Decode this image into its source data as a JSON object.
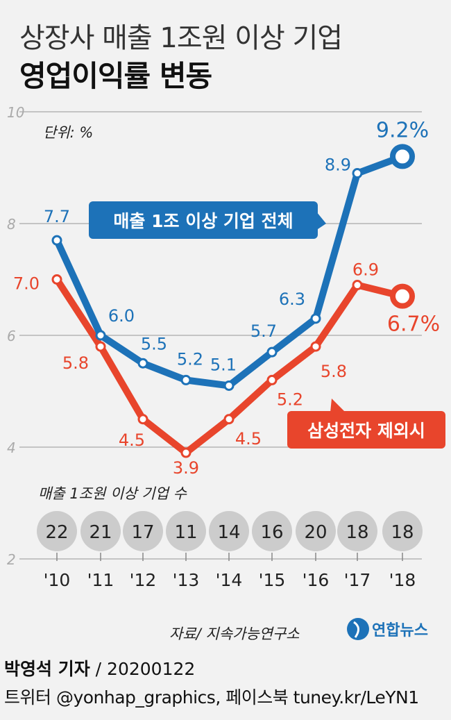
{
  "header": {
    "title_line1": "상장사 매출 1조원 이상 기업",
    "title_line2": "영업이익률 변동"
  },
  "chart_data": {
    "type": "line",
    "unit_label": "단위: %",
    "categories": [
      "'10",
      "'11",
      "'12",
      "'13",
      "'14",
      "'15",
      "'16",
      "'17",
      "'18"
    ],
    "ylim": [
      2,
      10
    ],
    "y_ticks": [
      "2",
      "4",
      "6",
      "8",
      "10"
    ],
    "grid": true,
    "series": [
      {
        "name": "매출 1조 이상 기업 전체",
        "color": "#1d72b8",
        "values": [
          7.7,
          6.0,
          5.5,
          5.2,
          5.1,
          5.7,
          6.3,
          8.9,
          9.2
        ],
        "labels": [
          "7.7",
          "6.0",
          "5.5",
          "5.2",
          "5.1",
          "5.7",
          "6.3",
          "8.9",
          "9.2%"
        ]
      },
      {
        "name": "삼성전자 제외시",
        "color": "#e8452c",
        "values": [
          7.0,
          5.8,
          4.5,
          3.9,
          4.5,
          5.2,
          5.8,
          6.9,
          6.7
        ],
        "labels": [
          "7.0",
          "5.8",
          "4.5",
          "3.9",
          "4.5",
          "5.2",
          "5.8",
          "6.9",
          "6.7%"
        ]
      }
    ],
    "company_count": {
      "label": "매출 1조원 이상 기업 수",
      "values": [
        "22",
        "21",
        "17",
        "11",
        "14",
        "16",
        "20",
        "18",
        "18"
      ]
    }
  },
  "footer": {
    "source": "자료/ 지속가능연구소",
    "logo_text": "연합뉴스",
    "reporter": "박영석 기자",
    "date": "20200122",
    "social": "트위터 @yonhap_graphics, 페이스북 tuney.kr/LeYN1"
  },
  "colors": {
    "blue": "#1d72b8",
    "red": "#e8452c",
    "circle_bg": "#cccccc",
    "grid": "#b5b5b5"
  }
}
